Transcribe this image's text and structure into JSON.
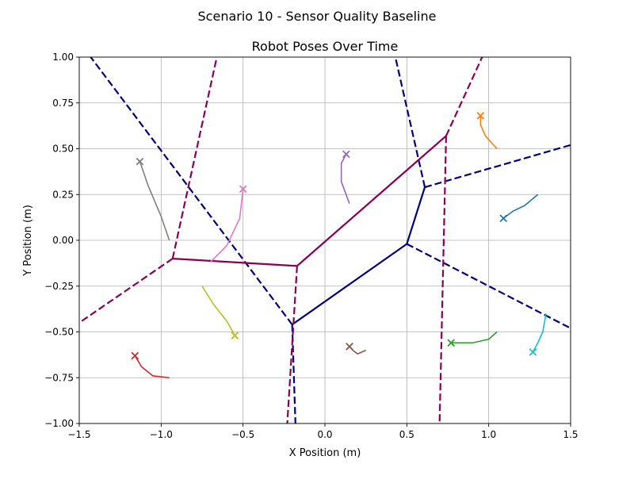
{
  "chart_data": {
    "type": "line",
    "suptitle": "Scenario 10 - Sensor Quality Baseline",
    "title": "Robot Poses Over Time",
    "xlabel": "X Position (m)",
    "ylabel": "Y Position (m)",
    "xlim": [
      -1.5,
      1.5
    ],
    "ylim": [
      -1.0,
      1.0
    ],
    "xticks": [
      -1.5,
      -1.0,
      -0.5,
      0.0,
      0.5,
      1.0,
      1.5
    ],
    "yticks": [
      -1.0,
      -0.75,
      -0.5,
      -0.25,
      0.0,
      0.25,
      0.5,
      0.75,
      1.0
    ],
    "xtick_labels": [
      "−1.5",
      "−1.0",
      "−0.5",
      "0.0",
      "0.5",
      "1.0",
      "1.5"
    ],
    "ytick_labels": [
      "−1.00",
      "−0.75",
      "−0.50",
      "−0.25",
      "0.00",
      "0.25",
      "0.50",
      "0.75",
      "1.00"
    ],
    "grid": true,
    "colors": {
      "voronoi_navy": "#000080",
      "voronoi_purple": "#8b0057",
      "grid": "#b0b0b0"
    },
    "voronoi_navy": {
      "solid": [
        [
          [
            -0.2,
            -0.46
          ],
          [
            0.5,
            -0.02
          ]
        ],
        [
          [
            0.5,
            -0.02
          ],
          [
            0.61,
            0.29
          ]
        ]
      ],
      "dashed": [
        [
          [
            -0.2,
            -0.46
          ],
          [
            -1.43,
            1.0
          ]
        ],
        [
          [
            -0.2,
            -0.46
          ],
          [
            -0.18,
            -1.0
          ]
        ],
        [
          [
            0.61,
            0.29
          ],
          [
            0.43,
            1.0
          ]
        ],
        [
          [
            0.61,
            0.29
          ],
          [
            1.5,
            0.52
          ]
        ],
        [
          [
            0.5,
            -0.02
          ],
          [
            1.5,
            -0.48
          ]
        ]
      ]
    },
    "voronoi_purple": {
      "solid": [
        [
          [
            -0.93,
            -0.1
          ],
          [
            -0.17,
            -0.14
          ]
        ],
        [
          [
            -0.17,
            -0.14
          ],
          [
            0.74,
            0.57
          ]
        ]
      ],
      "dashed": [
        [
          [
            -0.93,
            -0.1
          ],
          [
            -0.66,
            1.0
          ]
        ],
        [
          [
            -0.93,
            -0.1
          ],
          [
            -1.5,
            -0.45
          ]
        ],
        [
          [
            -0.17,
            -0.14
          ],
          [
            -0.23,
            -1.0
          ]
        ],
        [
          [
            0.74,
            0.57
          ],
          [
            0.96,
            1.0
          ]
        ],
        [
          [
            0.74,
            0.57
          ],
          [
            0.7,
            -1.0
          ]
        ]
      ]
    },
    "series": [
      {
        "color": "#1f77b4",
        "points": [
          [
            1.3,
            0.25
          ],
          [
            1.22,
            0.19
          ],
          [
            1.15,
            0.16
          ],
          [
            1.09,
            0.12
          ]
        ]
      },
      {
        "color": "#ff7f0e",
        "points": [
          [
            1.05,
            0.5
          ],
          [
            0.98,
            0.57
          ],
          [
            0.95,
            0.63
          ],
          [
            0.95,
            0.68
          ]
        ]
      },
      {
        "color": "#2ca02c",
        "points": [
          [
            1.05,
            -0.5
          ],
          [
            1.0,
            -0.54
          ],
          [
            0.9,
            -0.56
          ],
          [
            0.77,
            -0.56
          ]
        ]
      },
      {
        "color": "#d62728",
        "points": [
          [
            -0.95,
            -0.75
          ],
          [
            -1.05,
            -0.74
          ],
          [
            -1.12,
            -0.69
          ],
          [
            -1.16,
            -0.63
          ]
        ]
      },
      {
        "color": "#9467bd",
        "points": [
          [
            0.15,
            0.2
          ],
          [
            0.1,
            0.32
          ],
          [
            0.1,
            0.42
          ],
          [
            0.13,
            0.47
          ]
        ]
      },
      {
        "color": "#8c564b",
        "points": [
          [
            0.25,
            -0.6
          ],
          [
            0.2,
            -0.62
          ],
          [
            0.17,
            -0.6
          ],
          [
            0.15,
            -0.58
          ]
        ]
      },
      {
        "color": "#e377c2",
        "points": [
          [
            -0.7,
            -0.12
          ],
          [
            -0.6,
            -0.03
          ],
          [
            -0.52,
            0.12
          ],
          [
            -0.5,
            0.28
          ]
        ]
      },
      {
        "color": "#7f7f7f",
        "points": [
          [
            -0.95,
            0.0
          ],
          [
            -1.0,
            0.13
          ],
          [
            -1.08,
            0.3
          ],
          [
            -1.13,
            0.43
          ]
        ]
      },
      {
        "color": "#bcbd22",
        "points": [
          [
            -0.75,
            -0.25
          ],
          [
            -0.68,
            -0.35
          ],
          [
            -0.6,
            -0.44
          ],
          [
            -0.55,
            -0.52
          ]
        ]
      },
      {
        "color": "#17becf",
        "points": [
          [
            1.35,
            -0.4
          ],
          [
            1.33,
            -0.5
          ],
          [
            1.3,
            -0.56
          ],
          [
            1.27,
            -0.61
          ]
        ]
      }
    ]
  }
}
